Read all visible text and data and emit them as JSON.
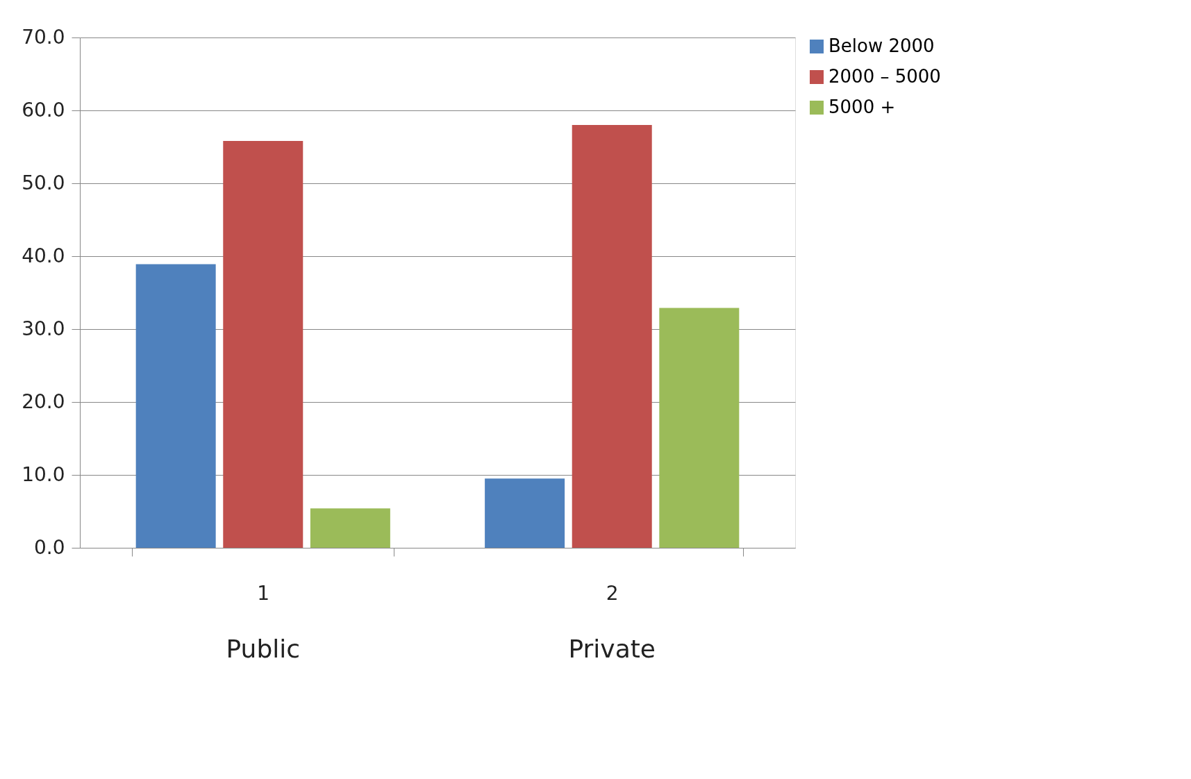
{
  "chart_data": {
    "type": "bar",
    "categories": [
      "1",
      "2"
    ],
    "series": [
      {
        "name": "Below 2000",
        "color": "#4f81bd",
        "values": [
          38.9,
          9.5
        ]
      },
      {
        "name": "2000 – 5000",
        "color": "#c0504d",
        "values": [
          55.8,
          58.0
        ]
      },
      {
        "name": "5000 +",
        "color": "#9bbb59",
        "values": [
          5.4,
          32.9
        ]
      }
    ],
    "ylim": [
      0,
      70
    ],
    "yticks": [
      {
        "value": 0,
        "label": "0.0"
      },
      {
        "value": 10,
        "label": "10.0"
      },
      {
        "value": 20,
        "label": "20.0"
      },
      {
        "value": 30,
        "label": "30.0"
      },
      {
        "value": 40,
        "label": "40.0"
      },
      {
        "value": 50,
        "label": "50.0"
      },
      {
        "value": 60,
        "label": "60.0"
      },
      {
        "value": 70,
        "label": "70.0"
      }
    ],
    "grid": "y",
    "legend": "right",
    "annotations": [
      "Public",
      "Private"
    ]
  }
}
